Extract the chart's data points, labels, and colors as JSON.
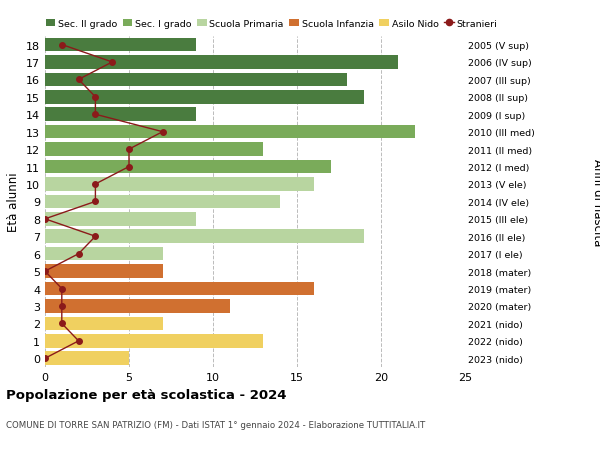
{
  "ages": [
    18,
    17,
    16,
    15,
    14,
    13,
    12,
    11,
    10,
    9,
    8,
    7,
    6,
    5,
    4,
    3,
    2,
    1,
    0
  ],
  "right_labels": [
    "2005 (V sup)",
    "2006 (IV sup)",
    "2007 (III sup)",
    "2008 (II sup)",
    "2009 (I sup)",
    "2010 (III med)",
    "2011 (II med)",
    "2012 (I med)",
    "2013 (V ele)",
    "2014 (IV ele)",
    "2015 (III ele)",
    "2016 (II ele)",
    "2017 (I ele)",
    "2018 (mater)",
    "2019 (mater)",
    "2020 (mater)",
    "2021 (nido)",
    "2022 (nido)",
    "2023 (nido)"
  ],
  "bar_values": [
    9,
    21,
    18,
    19,
    9,
    22,
    13,
    17,
    16,
    14,
    9,
    19,
    7,
    7,
    16,
    11,
    7,
    13,
    5
  ],
  "bar_colors": [
    "#4a7c3f",
    "#4a7c3f",
    "#4a7c3f",
    "#4a7c3f",
    "#4a7c3f",
    "#7aab5a",
    "#7aab5a",
    "#7aab5a",
    "#b8d5a0",
    "#b8d5a0",
    "#b8d5a0",
    "#b8d5a0",
    "#b8d5a0",
    "#d07030",
    "#d07030",
    "#d07030",
    "#f0d060",
    "#f0d060",
    "#f0d060"
  ],
  "stranieri_values": [
    1,
    4,
    2,
    3,
    3,
    7,
    5,
    5,
    3,
    3,
    0,
    3,
    2,
    0,
    1,
    1,
    1,
    2,
    0
  ],
  "stranieri_color": "#8b1a1a",
  "legend_labels": [
    "Sec. II grado",
    "Sec. I grado",
    "Scuola Primaria",
    "Scuola Infanzia",
    "Asilo Nido",
    "Stranieri"
  ],
  "legend_colors": [
    "#4a7c3f",
    "#7aab5a",
    "#b8d5a0",
    "#d07030",
    "#f0d060",
    "#8b1a1a"
  ],
  "ylabel": "Età alunni",
  "right_ylabel": "Anni di nascita",
  "title": "Popolazione per età scolastica - 2024",
  "subtitle": "COMUNE DI TORRE SAN PATRIZIO (FM) - Dati ISTAT 1° gennaio 2024 - Elaborazione TUTTITALIA.IT",
  "xlim": [
    0,
    25
  ],
  "background_color": "#ffffff",
  "grid_color": "#bbbbbb"
}
